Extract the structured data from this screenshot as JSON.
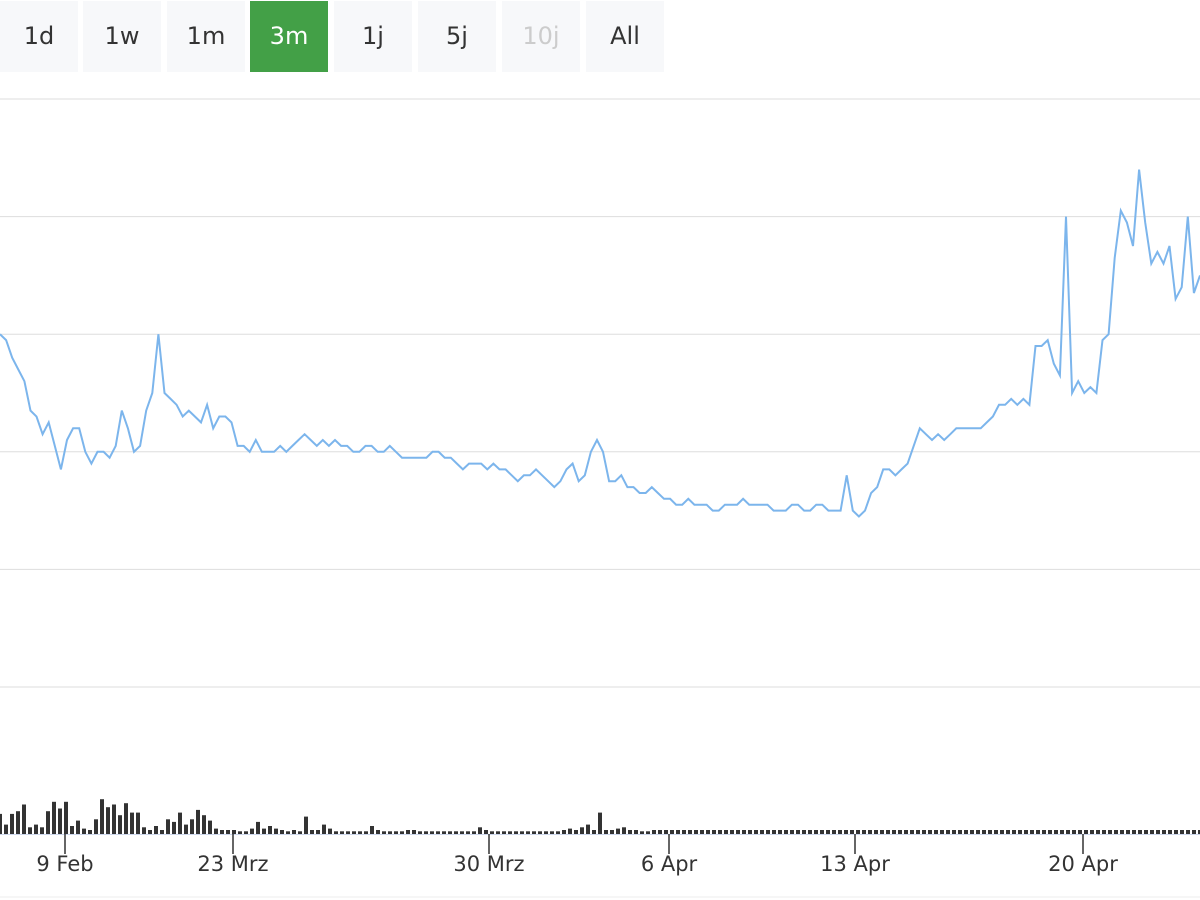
{
  "range_selector": {
    "buttons": [
      {
        "label": "1d",
        "state": "normal"
      },
      {
        "label": "1w",
        "state": "normal"
      },
      {
        "label": "1m",
        "state": "normal"
      },
      {
        "label": "3m",
        "state": "active"
      },
      {
        "label": "1j",
        "state": "normal"
      },
      {
        "label": "5j",
        "state": "normal"
      },
      {
        "label": "10j",
        "state": "disabled"
      },
      {
        "label": "All",
        "state": "normal"
      }
    ]
  },
  "colors": {
    "line": "#7cb5ec",
    "volume": "#333333",
    "active_button": "#43a047",
    "button_bg": "#f7f8fa",
    "grid": "#dddddd"
  },
  "chart_data": {
    "type": "line",
    "title": "",
    "xlabel": "",
    "ylabel": "",
    "grid": true,
    "legend": "none",
    "x_ticks": [
      "9 Feb",
      "23 Mrz",
      "30 Mrz",
      "6 Apr",
      "13 Apr",
      "20 Apr"
    ],
    "tick_dates": [
      "2020-02-09",
      "2020-03-23",
      "2020-03-30",
      "2020-04-06",
      "2020-04-13",
      "2020-04-20"
    ],
    "x_range": [
      "2020-01-26",
      "2020-04-24"
    ],
    "price_axis": {
      "min": 0,
      "max": 5,
      "gridlines": 6
    },
    "volume_axis": {
      "min": 0,
      "max": 10
    },
    "note_x": "sample points evenly spaced across the visible x range",
    "price": [
      3.0,
      2.95,
      2.8,
      2.7,
      2.6,
      2.35,
      2.3,
      2.15,
      2.25,
      2.05,
      1.85,
      2.1,
      2.2,
      2.2,
      2.0,
      1.9,
      2.0,
      2.0,
      1.95,
      2.05,
      2.35,
      2.2,
      2.0,
      2.05,
      2.35,
      2.5,
      3.0,
      2.5,
      2.45,
      2.4,
      2.3,
      2.35,
      2.3,
      2.25,
      2.4,
      2.2,
      2.3,
      2.3,
      2.25,
      2.05,
      2.05,
      2.0,
      2.1,
      2.0,
      2.0,
      2.0,
      2.05,
      2.0,
      2.05,
      2.1,
      2.15,
      2.1,
      2.05,
      2.1,
      2.05,
      2.1,
      2.05,
      2.05,
      2.0,
      2.0,
      2.05,
      2.05,
      2.0,
      2.0,
      2.05,
      2.0,
      1.95,
      1.95,
      1.95,
      1.95,
      1.95,
      2.0,
      2.0,
      1.95,
      1.95,
      1.9,
      1.85,
      1.9,
      1.9,
      1.9,
      1.85,
      1.9,
      1.85,
      1.85,
      1.8,
      1.75,
      1.8,
      1.8,
      1.85,
      1.8,
      1.75,
      1.7,
      1.75,
      1.85,
      1.9,
      1.75,
      1.8,
      2.0,
      2.1,
      2.0,
      1.75,
      1.75,
      1.8,
      1.7,
      1.7,
      1.65,
      1.65,
      1.7,
      1.65,
      1.6,
      1.6,
      1.55,
      1.55,
      1.6,
      1.55,
      1.55,
      1.55,
      1.5,
      1.5,
      1.55,
      1.55,
      1.55,
      1.6,
      1.55,
      1.55,
      1.55,
      1.55,
      1.5,
      1.5,
      1.5,
      1.55,
      1.55,
      1.5,
      1.5,
      1.55,
      1.55,
      1.5,
      1.5,
      1.5,
      1.8,
      1.5,
      1.45,
      1.5,
      1.65,
      1.7,
      1.85,
      1.85,
      1.8,
      1.85,
      1.9,
      2.05,
      2.2,
      2.15,
      2.1,
      2.15,
      2.1,
      2.15,
      2.2,
      2.2,
      2.2,
      2.2,
      2.2,
      2.25,
      2.3,
      2.4,
      2.4,
      2.45,
      2.4,
      2.45,
      2.4,
      2.9,
      2.9,
      2.95,
      2.75,
      2.65,
      4.0,
      2.5,
      2.6,
      2.5,
      2.55,
      2.5,
      2.95,
      3.0,
      3.65,
      4.05,
      3.95,
      3.75,
      4.4,
      3.95,
      3.6,
      3.7,
      3.6,
      3.75,
      3.3,
      3.4,
      4.0,
      3.35,
      3.5
    ],
    "volume": [
      1.5,
      0.7,
      1.5,
      1.7,
      2.2,
      0.5,
      0.7,
      0.5,
      1.7,
      2.4,
      1.9,
      2.4,
      0.6,
      1.0,
      0.4,
      0.3,
      1.1,
      2.6,
      2.0,
      2.2,
      1.4,
      2.3,
      1.6,
      1.6,
      0.5,
      0.3,
      0.6,
      0.3,
      1.1,
      0.9,
      1.6,
      0.7,
      1.1,
      1.8,
      1.4,
      1.0,
      0.4,
      0.3,
      0.3,
      0.3,
      0.2,
      0.2,
      0.4,
      0.9,
      0.4,
      0.6,
      0.4,
      0.3,
      0.2,
      0.3,
      0.2,
      1.3,
      0.3,
      0.3,
      0.7,
      0.4,
      0.2,
      0.2,
      0.2,
      0.2,
      0.2,
      0.2,
      0.6,
      0.3,
      0.2,
      0.2,
      0.2,
      0.2,
      0.3,
      0.3,
      0.2,
      0.2,
      0.2,
      0.2,
      0.2,
      0.2,
      0.2,
      0.2,
      0.2,
      0.2,
      0.5,
      0.3,
      0.2,
      0.2,
      0.2,
      0.2,
      0.2,
      0.2,
      0.2,
      0.2,
      0.2,
      0.2,
      0.2,
      0.2,
      0.3,
      0.4,
      0.3,
      0.5,
      0.7,
      0.3,
      1.6,
      0.3,
      0.3,
      0.4,
      0.5,
      0.3,
      0.3,
      0.2,
      0.2,
      0.3,
      0.3,
      0.3,
      0.3,
      0.3,
      0.3,
      0.3,
      0.3,
      0.3,
      0.3,
      0.3,
      0.3,
      0.3,
      0.3,
      0.3,
      0.3,
      0.3,
      0.3,
      0.3,
      0.3,
      0.3,
      0.3,
      0.3,
      0.3,
      0.3,
      0.3,
      0.3,
      0.3,
      0.3,
      0.3,
      0.3,
      0.3,
      0.3,
      0.3,
      0.3,
      0.3,
      0.3,
      0.3,
      0.3,
      0.3,
      0.3,
      0.3,
      0.3,
      0.3,
      0.3,
      0.3,
      0.3,
      0.3,
      0.3,
      0.3,
      0.3,
      0.3,
      0.3,
      0.3,
      0.3,
      0.3,
      0.3,
      0.3,
      0.3,
      0.3,
      0.3,
      0.3,
      0.3,
      0.3,
      0.3,
      0.3,
      0.3,
      0.3,
      0.3,
      0.3,
      0.3,
      0.3,
      0.3,
      0.3,
      0.3,
      0.3,
      0.3,
      0.3,
      0.3,
      0.3,
      0.3,
      0.3,
      0.3,
      0.3,
      0.3,
      0.3,
      0.3,
      0.3,
      0.3,
      0.3,
      0.3,
      0.3
    ]
  }
}
